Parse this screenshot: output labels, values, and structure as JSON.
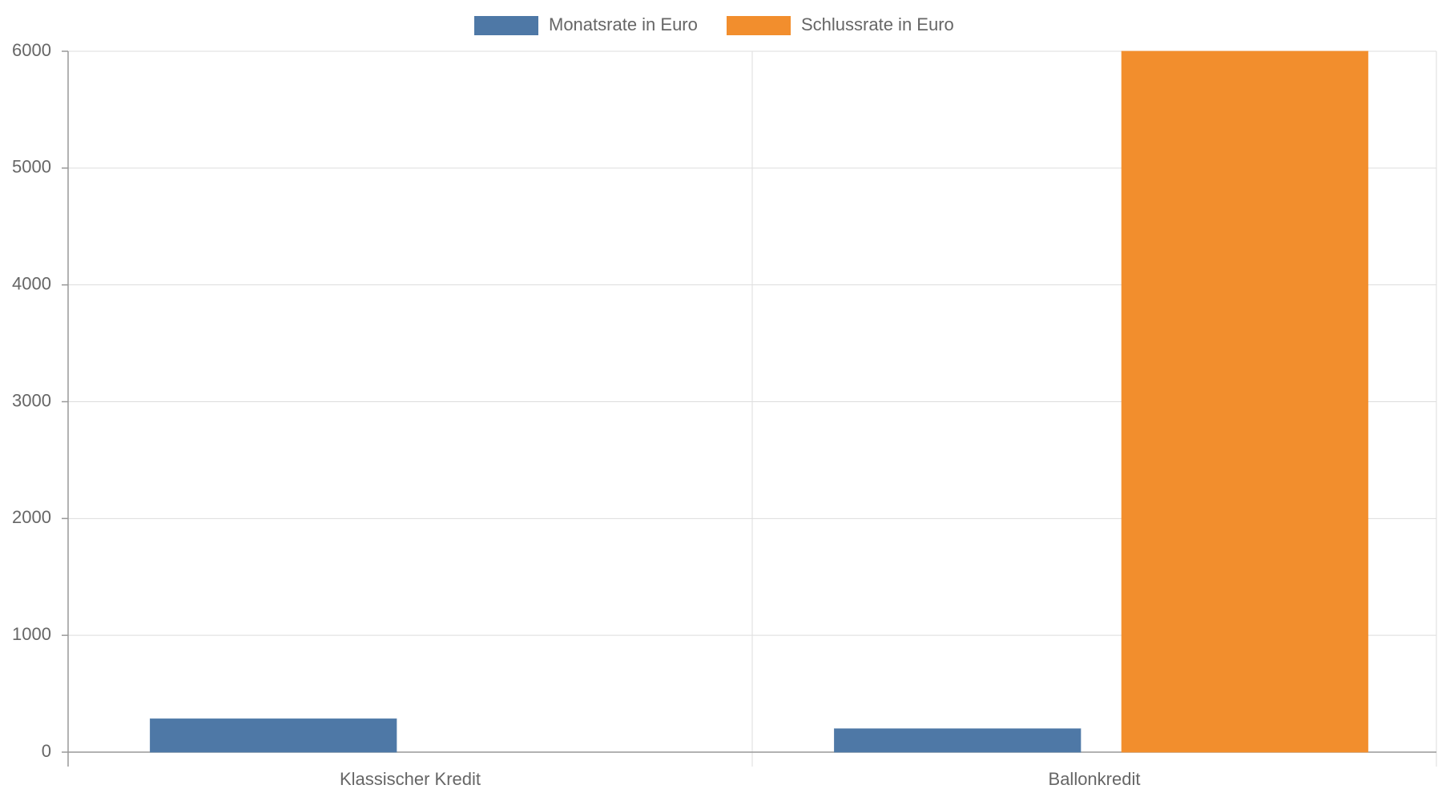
{
  "chart_data": {
    "type": "bar",
    "categories": [
      "Klassischer Kredit",
      "Ballonkredit"
    ],
    "series": [
      {
        "name": "Monatsrate in Euro",
        "color": "#4e78a6",
        "values": [
          285,
          200
        ]
      },
      {
        "name": "Schlussrate in Euro",
        "color": "#f28e2d",
        "values": [
          null,
          6000
        ]
      }
    ],
    "ylim": [
      0,
      6000
    ],
    "yticks": [
      0,
      1000,
      2000,
      3000,
      4000,
      5000,
      6000
    ],
    "grid": true,
    "legend": "top"
  }
}
